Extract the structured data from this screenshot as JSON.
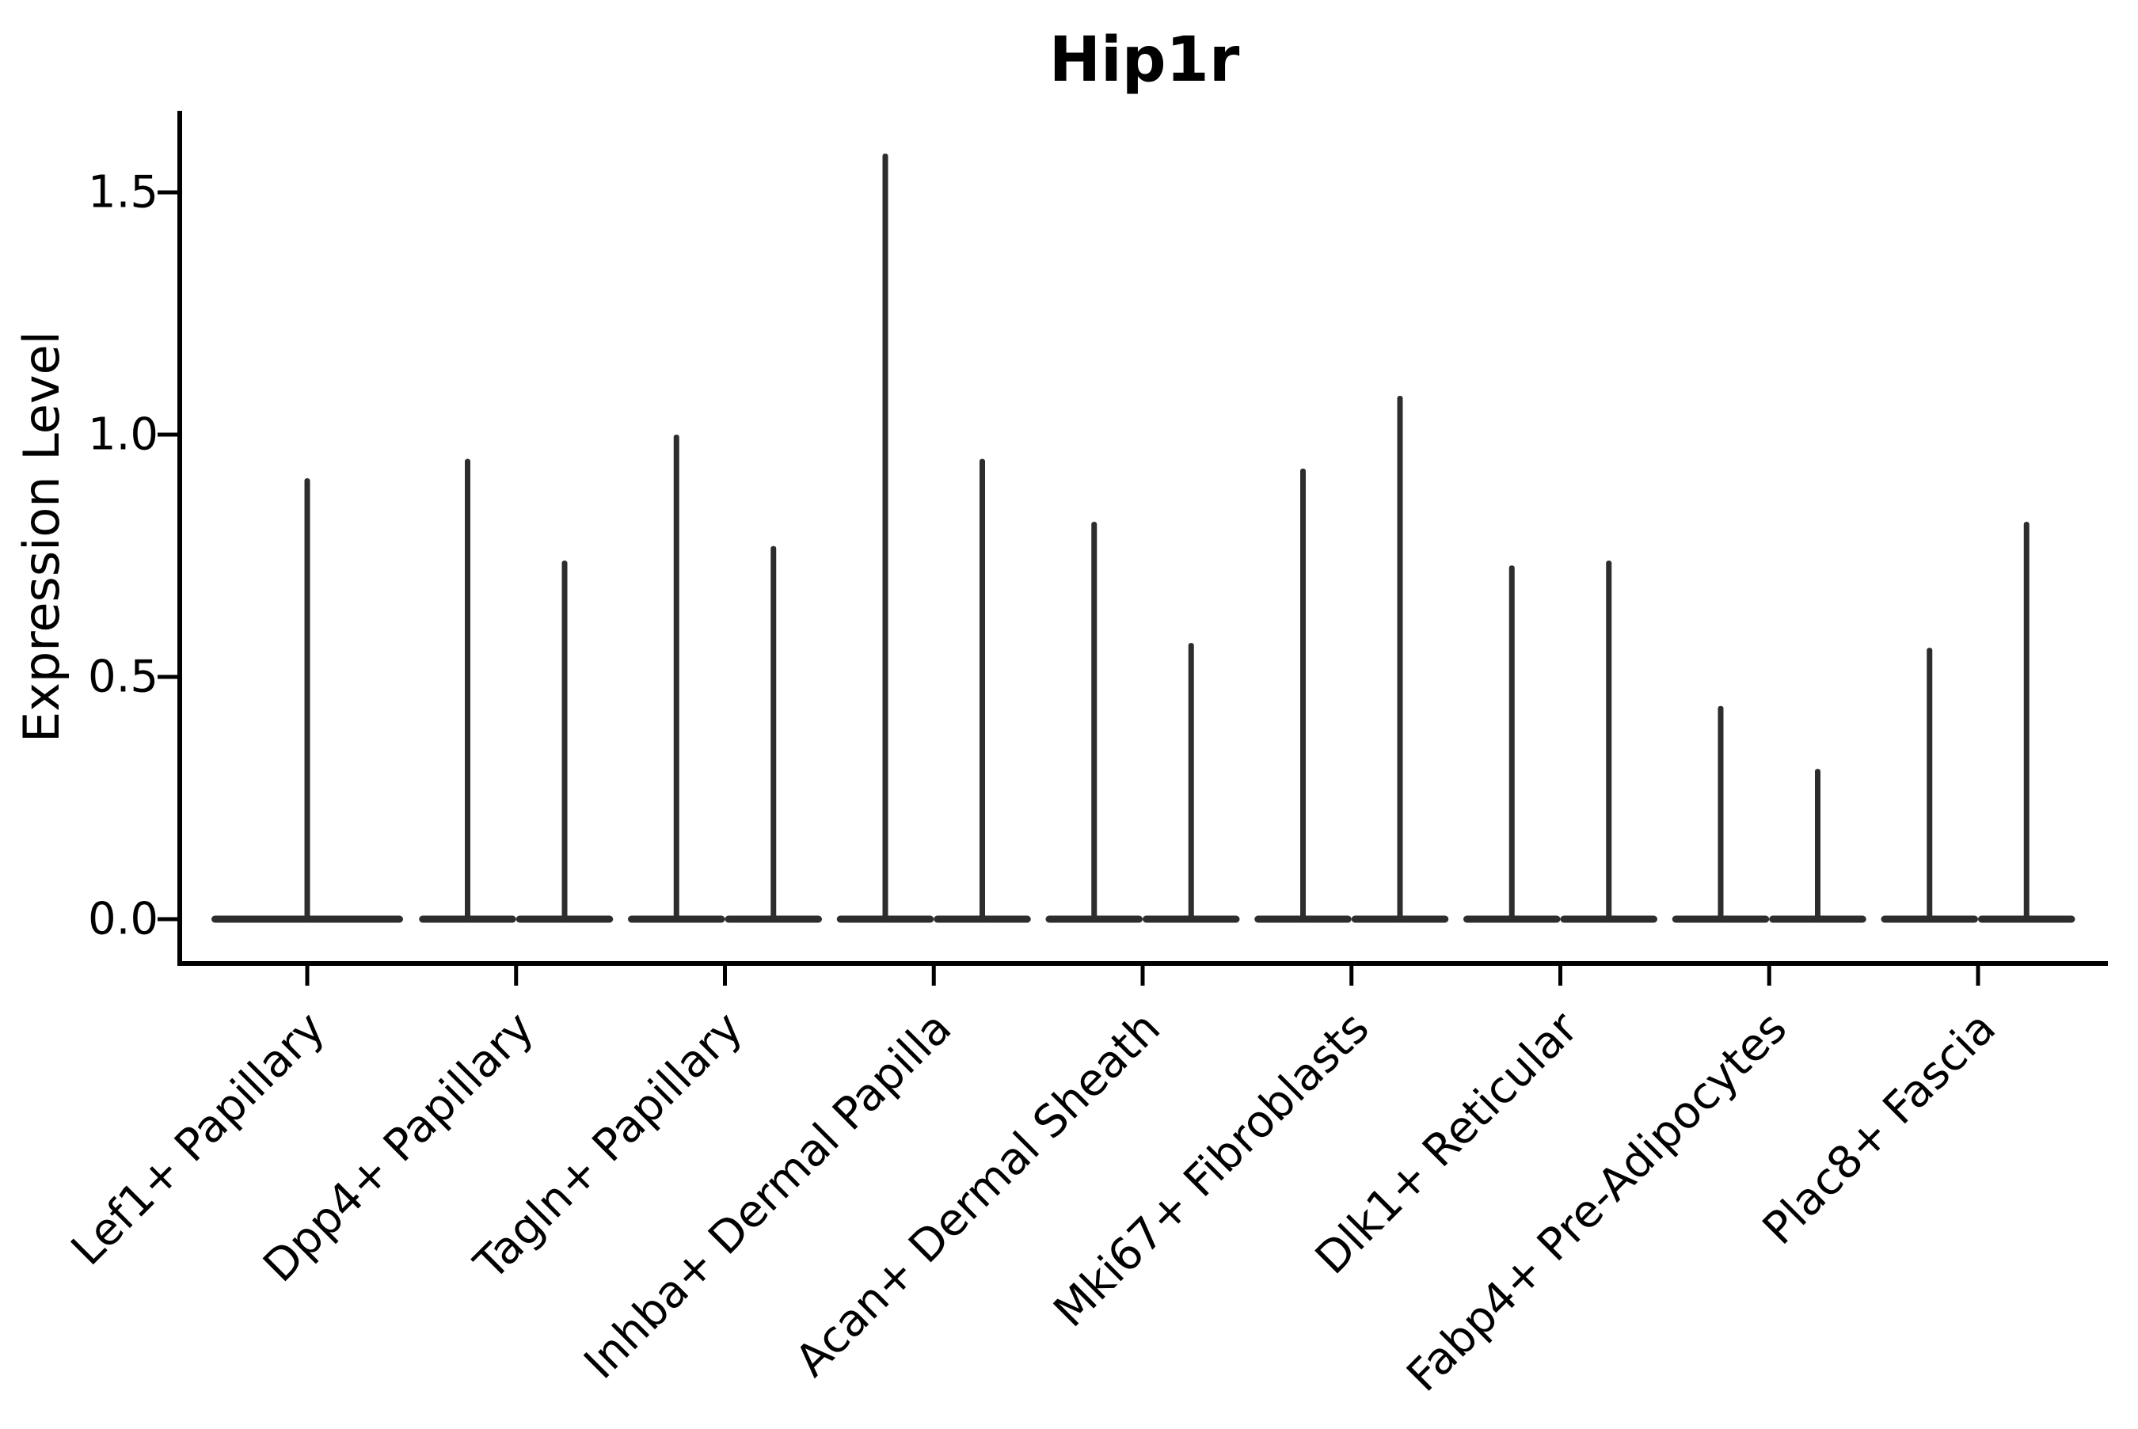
{
  "chart_data": {
    "type": "violin",
    "title": "Hip1r",
    "ylabel": "Expression Level",
    "xlabel": "",
    "yticks": [
      0.0,
      0.5,
      1.0,
      1.5
    ],
    "ytick_labels": [
      "0.0",
      "0.5",
      "1.0",
      "1.5"
    ],
    "ylim": [
      -0.09,
      1.67
    ],
    "grid": false,
    "legend": null,
    "colors": {
      "violin": "#2d2d2d",
      "axis": "#000000",
      "background": "#ffffff"
    },
    "categories": [
      {
        "label": "Lef1+ Papillary",
        "violin_maxima": [
          0.91
        ],
        "full_width_single": true
      },
      {
        "label": "Dpp4+ Papillary",
        "violin_maxima": [
          0.95,
          0.74
        ]
      },
      {
        "label": "Tagln+ Papillary",
        "violin_maxima": [
          1.0,
          0.77
        ]
      },
      {
        "label": "Inhba+ Dermal Papilla",
        "violin_maxima": [
          1.58,
          0.95
        ]
      },
      {
        "label": "Acan+ Dermal Sheath",
        "violin_maxima": [
          0.82,
          0.57
        ]
      },
      {
        "label": "Mki67+ Fibroblasts",
        "violin_maxima": [
          0.93,
          1.08
        ]
      },
      {
        "label": "Dlk1+ Reticular",
        "violin_maxima": [
          0.73,
          0.74
        ]
      },
      {
        "label": "Fabp4+ Pre-Adipocytes",
        "violin_maxima": [
          0.44,
          0.31
        ]
      },
      {
        "label": "Plac8+ Fascia",
        "violin_maxima": [
          0.56,
          0.82
        ]
      }
    ],
    "violin_shape_note": "each violin renders as a flat horizontal bar at expression 0 plus a thin vertical spike up to its max value"
  }
}
